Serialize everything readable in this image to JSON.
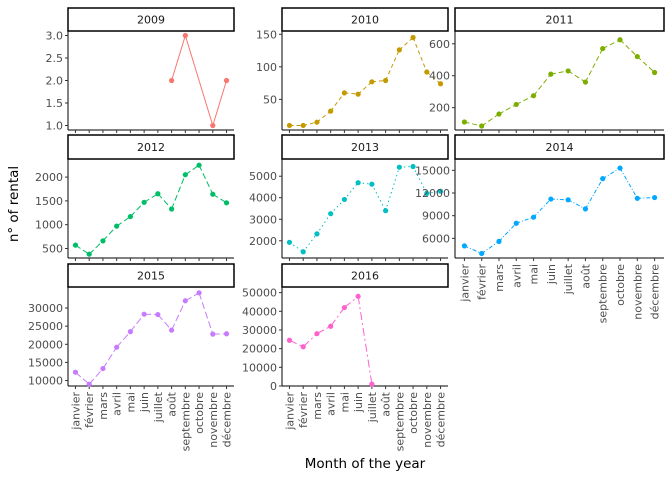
{
  "chart_data": {
    "type": "line",
    "xlabel": "Month of the year",
    "ylabel": "n° of rental",
    "months": [
      "janvier",
      "février",
      "mars",
      "avril",
      "mai",
      "juin",
      "juillet",
      "août",
      "septembre",
      "octobre",
      "novembre",
      "décembre"
    ],
    "grid": false,
    "panels": [
      {
        "year": "2009",
        "color": "#F8766D",
        "dash": "none",
        "values": [
          null,
          null,
          null,
          null,
          null,
          null,
          null,
          2,
          3,
          null,
          1,
          2
        ],
        "ylim": [
          0.9,
          3.1
        ],
        "yticks": [
          1.0,
          1.5,
          2.0,
          2.5,
          3.0
        ],
        "ytick_labels": [
          "1.0",
          "1.5",
          "2.0",
          "2.5",
          "3.0"
        ]
      },
      {
        "year": "2010",
        "color": "#C49A00",
        "dash": "4 3",
        "values": [
          10,
          10,
          15,
          32,
          60,
          58,
          77,
          79,
          126,
          145,
          92,
          74
        ],
        "ylim": [
          3,
          155
        ],
        "yticks": [
          50,
          100,
          150
        ],
        "ytick_labels": [
          "50",
          "100",
          "150"
        ]
      },
      {
        "year": "2011",
        "color": "#7CAE00",
        "dash": "5 3",
        "values": [
          110,
          85,
          160,
          220,
          275,
          410,
          430,
          360,
          570,
          625,
          520,
          420
        ],
        "ylim": [
          60,
          680
        ],
        "yticks": [
          200,
          400,
          600
        ],
        "ytick_labels": [
          "200",
          "400",
          "600"
        ]
      },
      {
        "year": "2012",
        "color": "#00BE67",
        "dash": "6 3",
        "values": [
          570,
          380,
          660,
          970,
          1170,
          1470,
          1650,
          1330,
          2050,
          2250,
          1640,
          1460
        ],
        "ylim": [
          300,
          2380
        ],
        "yticks": [
          500,
          1000,
          1500,
          2000
        ],
        "ytick_labels": [
          "500",
          "1000",
          "1500",
          "2000"
        ]
      },
      {
        "year": "2013",
        "color": "#00BFC4",
        "dash": "1.5 3",
        "values": [
          1930,
          1490,
          2320,
          3260,
          3920,
          4700,
          4630,
          3400,
          5420,
          5450,
          4200,
          4300
        ],
        "ylim": [
          1200,
          5800
        ],
        "yticks": [
          2000,
          3000,
          4000,
          5000
        ],
        "ytick_labels": [
          "2000",
          "3000",
          "4000",
          "5000"
        ]
      },
      {
        "year": "2014",
        "color": "#00A9FF",
        "dash": "4 2 1 2",
        "values": [
          5000,
          4000,
          5600,
          8000,
          8800,
          11200,
          11100,
          9900,
          13900,
          15300,
          11300,
          11400
        ],
        "ylim": [
          3400,
          16500
        ],
        "yticks": [
          6000,
          9000,
          12000,
          15000
        ],
        "ytick_labels": [
          "6000",
          "9000",
          "12000",
          "15000"
        ]
      },
      {
        "year": "2015",
        "color": "#C77CFF",
        "dash": "7 3",
        "values": [
          12300,
          9000,
          13300,
          19200,
          23500,
          28300,
          28200,
          23900,
          32000,
          34200,
          22800,
          22900
        ],
        "ylim": [
          8500,
          35800
        ],
        "yticks": [
          10000,
          15000,
          20000,
          25000,
          30000
        ],
        "ytick_labels": [
          "10000",
          "15000",
          "20000",
          "25000",
          "30000"
        ]
      },
      {
        "year": "2016",
        "color": "#FF61CC",
        "dash": "8 3 2 3",
        "values": [
          24500,
          21000,
          28000,
          32000,
          42000,
          48000,
          1000,
          null,
          null,
          null,
          null,
          null
        ],
        "ylim": [
          0,
          53000
        ],
        "yticks": [
          0,
          10000,
          20000,
          30000,
          40000,
          50000
        ],
        "ytick_labels": [
          "0",
          "10000",
          "20000",
          "30000",
          "40000",
          "50000"
        ]
      }
    ]
  }
}
